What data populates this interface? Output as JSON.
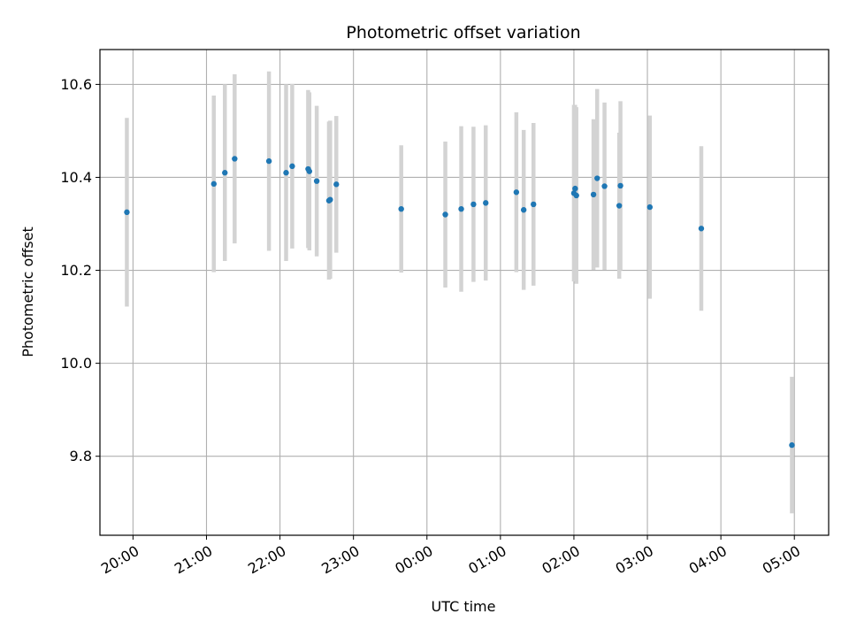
{
  "chart_data": {
    "type": "scatter",
    "title": "Photometric offset variation",
    "xlabel": "UTC time",
    "ylabel": "Photometric offset",
    "x_axis": "time",
    "xlim": [
      "19:33",
      "05:28"
    ],
    "ylim": [
      9.63,
      10.675
    ],
    "x_ticks": [
      "20:00",
      "21:00",
      "22:00",
      "23:00",
      "00:00",
      "01:00",
      "02:00",
      "03:00",
      "04:00",
      "05:00"
    ],
    "y_ticks": [
      "9.8",
      "10.0",
      "10.2",
      "10.4",
      "10.6"
    ],
    "grid": true,
    "point_color": "#1f77b4",
    "errorbar_color": "#d3d3d3",
    "points": [
      {
        "t": "19:55",
        "y": 10.325,
        "err": 0.203
      },
      {
        "t": "21:06",
        "y": 10.386,
        "err": 0.19
      },
      {
        "t": "21:15",
        "y": 10.41,
        "err": 0.19
      },
      {
        "t": "21:23",
        "y": 10.44,
        "err": 0.182
      },
      {
        "t": "21:51",
        "y": 10.435,
        "err": 0.193
      },
      {
        "t": "22:05",
        "y": 10.41,
        "err": 0.19
      },
      {
        "t": "22:10",
        "y": 10.424,
        "err": 0.177
      },
      {
        "t": "22:23",
        "y": 10.418,
        "err": 0.17
      },
      {
        "t": "22:24",
        "y": 10.413,
        "err": 0.17
      },
      {
        "t": "22:30",
        "y": 10.392,
        "err": 0.162
      },
      {
        "t": "22:40",
        "y": 10.35,
        "err": 0.17
      },
      {
        "t": "22:41",
        "y": 10.352,
        "err": 0.17
      },
      {
        "t": "22:46",
        "y": 10.385,
        "err": 0.147
      },
      {
        "t": "23:39",
        "y": 10.332,
        "err": 0.137
      },
      {
        "t": "00:15",
        "y": 10.32,
        "err": 0.157
      },
      {
        "t": "00:28",
        "y": 10.332,
        "err": 0.178
      },
      {
        "t": "00:38",
        "y": 10.342,
        "err": 0.167
      },
      {
        "t": "00:48",
        "y": 10.345,
        "err": 0.167
      },
      {
        "t": "01:13",
        "y": 10.368,
        "err": 0.172
      },
      {
        "t": "01:19",
        "y": 10.33,
        "err": 0.172
      },
      {
        "t": "01:27",
        "y": 10.342,
        "err": 0.175
      },
      {
        "t": "02:00",
        "y": 10.366,
        "err": 0.19
      },
      {
        "t": "02:01",
        "y": 10.376,
        "err": 0.18
      },
      {
        "t": "02:02",
        "y": 10.361,
        "err": 0.19
      },
      {
        "t": "02:16",
        "y": 10.363,
        "err": 0.162
      },
      {
        "t": "02:19",
        "y": 10.398,
        "err": 0.192
      },
      {
        "t": "02:25",
        "y": 10.381,
        "err": 0.18
      },
      {
        "t": "02:37",
        "y": 10.339,
        "err": 0.157
      },
      {
        "t": "02:38",
        "y": 10.382,
        "err": 0.182
      },
      {
        "t": "03:02",
        "y": 10.336,
        "err": 0.197
      },
      {
        "t": "03:44",
        "y": 10.29,
        "err": 0.177
      },
      {
        "t": "04:58",
        "y": 9.824,
        "err": 0.147
      }
    ]
  }
}
